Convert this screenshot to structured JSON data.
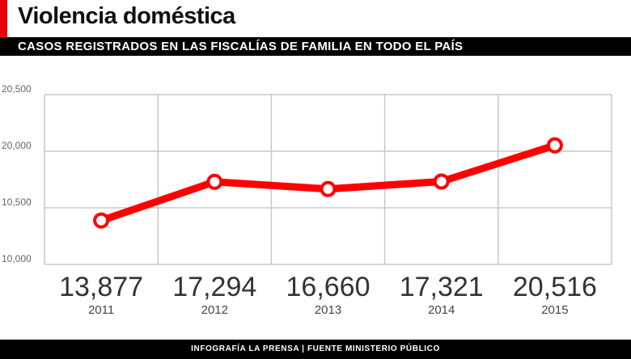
{
  "header": {
    "title": "Violencia doméstica",
    "subtitle": "CASOS REGISTRADOS EN LAS FISCALÍAS DE FAMILIA EN TODO EL PAÍS"
  },
  "footer": {
    "text": "INFOGRAFÍA LA PRENSA | FUENTE MINISTERIO PÚBLICO"
  },
  "chart_data": {
    "type": "line",
    "title": "Violencia doméstica",
    "subtitle": "CASOS REGISTRADOS EN LAS FISCALÍAS DE FAMILIA EN TODO EL PAÍS",
    "categories": [
      "2011",
      "2012",
      "2013",
      "2014",
      "2015"
    ],
    "values": [
      13877,
      17294,
      16660,
      17321,
      20516
    ],
    "data_labels": [
      "13,877",
      "17,294",
      "16,660",
      "17,321",
      "20,516"
    ],
    "y_tick_labels": [
      "10,000",
      "10,500",
      "20,000",
      "20,500"
    ],
    "ylim": [
      10000,
      25000
    ],
    "grid": true,
    "colors": {
      "line": "#ff0000",
      "grid": "#c8c8c8",
      "marker_fill": "#ffffff"
    }
  }
}
